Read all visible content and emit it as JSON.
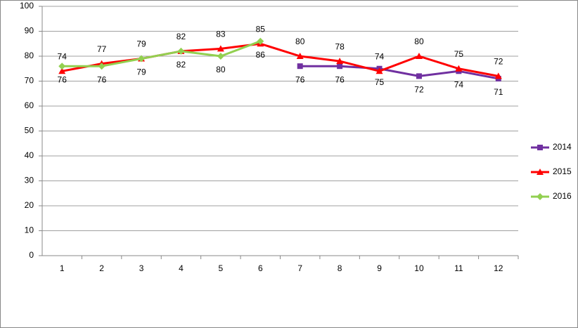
{
  "chart_data": {
    "type": "line",
    "categories": [
      "1",
      "2",
      "3",
      "4",
      "5",
      "6",
      "7",
      "8",
      "9",
      "10",
      "11",
      "12"
    ],
    "series": [
      {
        "name": "2014",
        "color": "#7030a0",
        "marker": "square",
        "label_position": "below",
        "values": [
          null,
          null,
          null,
          null,
          null,
          null,
          76,
          76,
          75,
          72,
          74,
          71
        ]
      },
      {
        "name": "2015",
        "color": "#ff0000",
        "marker": "triangle",
        "label_position": "above",
        "values": [
          74,
          77,
          79,
          82,
          83,
          85,
          80,
          78,
          74,
          80,
          75,
          72
        ]
      },
      {
        "name": "2016",
        "color": "#92d050",
        "marker": "diamond",
        "label_position": "below",
        "values": [
          76,
          76,
          79,
          82,
          80,
          86,
          null,
          null,
          null,
          null,
          null,
          null
        ]
      }
    ],
    "ylim": [
      0,
      100
    ],
    "yticks": [
      0,
      10,
      20,
      30,
      40,
      50,
      60,
      70,
      80,
      90,
      100
    ],
    "grid": true,
    "legend": "right"
  }
}
